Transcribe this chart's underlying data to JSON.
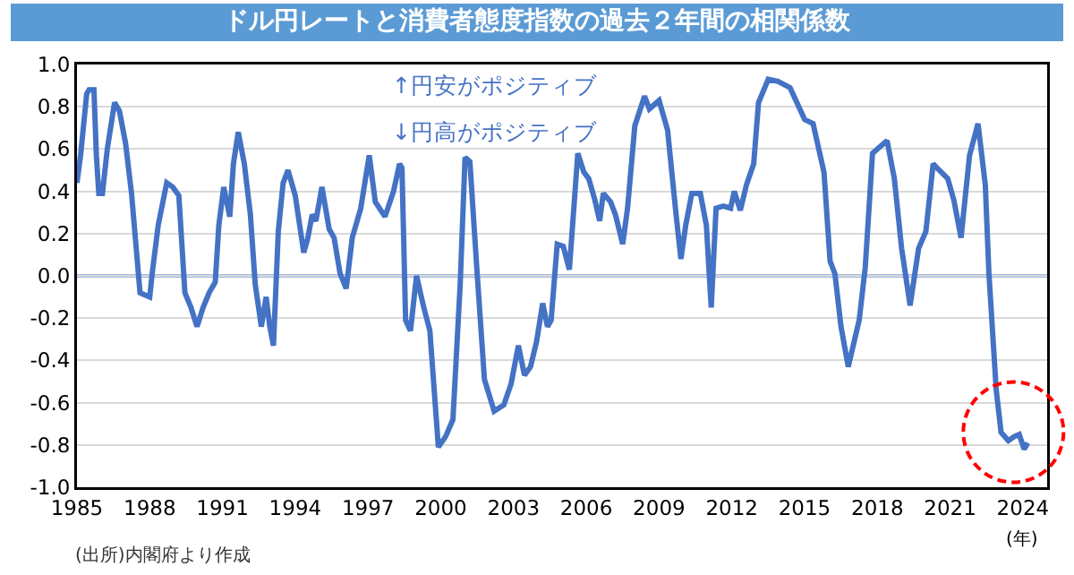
{
  "chart_data": {
    "type": "line",
    "title": "ドル円レートと消費者態度指数の過去２年間の相関係数",
    "x": [
      1985.0,
      1985.15,
      1985.4,
      1985.5,
      1985.7,
      1985.8,
      1985.9,
      1986.05,
      1986.25,
      1986.55,
      1986.75,
      1987.0,
      1987.25,
      1987.6,
      1988.0,
      1988.1,
      1988.35,
      1988.7,
      1988.95,
      1989.2,
      1989.45,
      1989.7,
      1989.95,
      1990.2,
      1990.45,
      1990.7,
      1990.85,
      1991.05,
      1991.3,
      1991.45,
      1991.65,
      1991.9,
      1992.15,
      1992.35,
      1992.6,
      1992.8,
      1992.95,
      1993.1,
      1993.3,
      1993.5,
      1993.7,
      1994.0,
      1994.35,
      1994.5,
      1994.7,
      1994.85,
      1995.1,
      1995.4,
      1995.6,
      1995.85,
      1996.1,
      1996.35,
      1996.7,
      1997.05,
      1997.3,
      1997.7,
      1998.05,
      1998.3,
      1998.4,
      1998.55,
      1998.75,
      1999.0,
      1999.3,
      1999.55,
      1999.9,
      2000.2,
      2000.5,
      2000.8,
      2001.0,
      2001.2,
      2001.5,
      2001.8,
      2002.2,
      2002.6,
      2002.9,
      2003.2,
      2003.45,
      2003.7,
      2003.95,
      2004.2,
      2004.4,
      2004.55,
      2004.8,
      2005.05,
      2005.3,
      2005.65,
      2005.9,
      2006.1,
      2006.35,
      2006.55,
      2006.7,
      2007.0,
      2007.2,
      2007.5,
      2007.7,
      2008.0,
      2008.4,
      2008.6,
      2009.0,
      2009.35,
      2009.7,
      2009.9,
      2010.1,
      2010.35,
      2010.7,
      2010.95,
      2011.15,
      2011.35,
      2011.65,
      2011.95,
      2012.1,
      2012.35,
      2012.6,
      2012.9,
      2013.1,
      2013.5,
      2013.9,
      2014.4,
      2014.8,
      2015.0,
      2015.35,
      2015.8,
      2016.05,
      2016.25,
      2016.5,
      2016.8,
      2017.25,
      2017.5,
      2017.8,
      2018.1,
      2018.4,
      2018.7,
      2019.0,
      2019.35,
      2019.7,
      2020.0,
      2020.3,
      2020.55,
      2020.9,
      2021.15,
      2021.45,
      2021.8,
      2022.15,
      2022.45,
      2022.6,
      2022.9,
      2023.1,
      2023.4,
      2023.65,
      2023.85,
      2024.05,
      2024.2
    ],
    "series": [
      {
        "color": "#4472c4",
        "values": [
          0.44,
          0.57,
          0.86,
          0.88,
          0.88,
          0.57,
          0.39,
          0.39,
          0.6,
          0.82,
          0.78,
          0.63,
          0.39,
          -0.08,
          -0.1,
          0.01,
          0.24,
          0.44,
          0.42,
          0.38,
          -0.08,
          -0.15,
          -0.24,
          -0.15,
          -0.08,
          -0.03,
          0.24,
          0.42,
          0.28,
          0.53,
          0.68,
          0.53,
          0.29,
          -0.04,
          -0.24,
          -0.1,
          -0.24,
          -0.33,
          0.21,
          0.44,
          0.5,
          0.38,
          0.11,
          0.17,
          0.29,
          0.26,
          0.42,
          0.22,
          0.18,
          0.01,
          -0.06,
          0.18,
          0.32,
          0.57,
          0.35,
          0.28,
          0.4,
          0.53,
          0.51,
          -0.21,
          -0.26,
          0.0,
          -0.15,
          -0.26,
          -0.81,
          -0.76,
          -0.68,
          -0.04,
          0.56,
          0.54,
          0.01,
          -0.49,
          -0.64,
          -0.61,
          -0.51,
          -0.33,
          -0.47,
          -0.43,
          -0.31,
          -0.13,
          -0.24,
          -0.21,
          0.15,
          0.14,
          0.03,
          0.58,
          0.49,
          0.46,
          0.36,
          0.26,
          0.39,
          0.35,
          0.29,
          0.15,
          0.32,
          0.71,
          0.85,
          0.79,
          0.83,
          0.69,
          0.29,
          0.08,
          0.24,
          0.39,
          0.39,
          0.24,
          -0.15,
          0.32,
          0.33,
          0.32,
          0.4,
          0.31,
          0.43,
          0.53,
          0.82,
          0.93,
          0.92,
          0.89,
          0.79,
          0.74,
          0.72,
          0.49,
          0.07,
          0.01,
          -0.24,
          -0.43,
          -0.21,
          0.04,
          0.58,
          0.61,
          0.64,
          0.46,
          0.13,
          -0.14,
          0.13,
          0.21,
          0.53,
          0.5,
          0.46,
          0.36,
          0.18,
          0.57,
          0.72,
          0.43,
          0.01,
          -0.54,
          -0.74,
          -0.78,
          -0.76,
          -0.75,
          -0.82,
          -0.79
        ]
      }
    ],
    "xlim": [
      1985,
      2025
    ],
    "xticks": [
      1985,
      1988,
      1991,
      1994,
      1997,
      2000,
      2003,
      2006,
      2009,
      2012,
      2015,
      2018,
      2021,
      2024
    ],
    "ylim": [
      -1.0,
      1.0
    ],
    "yticks": [
      {
        "value": -1.0,
        "label": "-1.0"
      },
      {
        "value": -0.8,
        "label": "-0.8"
      },
      {
        "value": -0.6,
        "label": "-0.6"
      },
      {
        "value": -0.4,
        "label": "-0.4"
      },
      {
        "value": -0.2,
        "label": "-0.2"
      },
      {
        "value": 0,
        "label": "0.0"
      },
      {
        "value": 0.2,
        "label": "0.2"
      },
      {
        "value": 0.4,
        "label": "0.4"
      },
      {
        "value": 0.6,
        "label": "0.6"
      },
      {
        "value": 0.8,
        "label": "0.8"
      },
      {
        "value": 1.0,
        "label": "1.0"
      }
    ],
    "ref_lines": [
      {
        "axis": "y",
        "value": 0,
        "color": "#4472c4"
      }
    ],
    "grid": "y",
    "legend": false,
    "marker": "none",
    "line_style": "solid",
    "annotations": [
      "↑円安がポジティブ",
      "↓円高がポジティブ",
      "(年)",
      "(出所)内閣府より作成"
    ]
  }
}
